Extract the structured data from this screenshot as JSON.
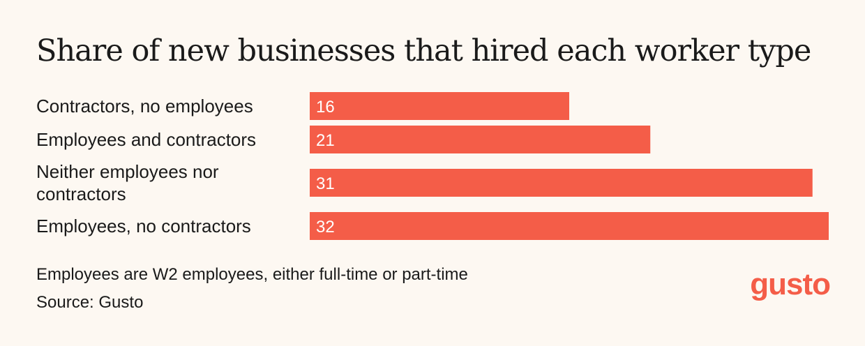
{
  "colors": {
    "background": "#FDF8F2",
    "bar": "#F45D48",
    "text": "#1A1A1A",
    "brand": "#F45D48"
  },
  "chart_data": {
    "type": "bar",
    "orientation": "horizontal",
    "title": "Share of new businesses that hired each worker type",
    "categories": [
      [
        "Contractors, no employees"
      ],
      [
        "Employees and contractors"
      ],
      [
        "Neither employees nor",
        "contractors"
      ],
      [
        "Employees, no contractors"
      ]
    ],
    "values": [
      16,
      21,
      31,
      32
    ],
    "xlim": [
      0,
      32
    ],
    "grid": false,
    "legend": "none"
  },
  "footnote": {
    "note": "Employees are W2 employees, either full-time or part-time",
    "source": "Source: Gusto"
  },
  "logo": {
    "text": "gusto",
    "icon": "gusto-logo"
  }
}
